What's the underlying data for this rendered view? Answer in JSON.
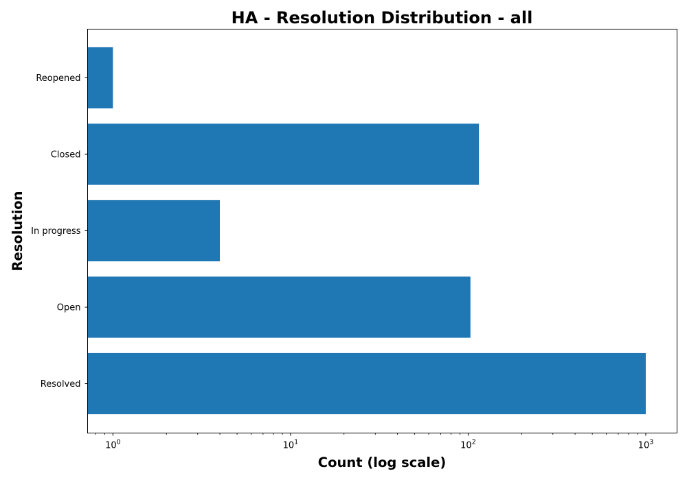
{
  "chart_data": {
    "type": "bar",
    "orientation": "horizontal",
    "title": "HA - Resolution Distribution - all",
    "xlabel": "Count (log scale)",
    "ylabel": "Resolution",
    "x_scale": "log",
    "xlim": [
      0.72,
      1500
    ],
    "x_ticks": [
      {
        "value": 1,
        "base": "10",
        "exp": "0"
      },
      {
        "value": 10,
        "base": "10",
        "exp": "1"
      },
      {
        "value": 100,
        "base": "10",
        "exp": "2"
      },
      {
        "value": 1000,
        "base": "10",
        "exp": "3"
      }
    ],
    "categories": [
      "Resolved",
      "Open",
      "In progress",
      "Closed",
      "Reopened"
    ],
    "values": [
      1000,
      103,
      4,
      115,
      1
    ],
    "color": "#1f77b4",
    "grid": false,
    "legend": "none"
  }
}
